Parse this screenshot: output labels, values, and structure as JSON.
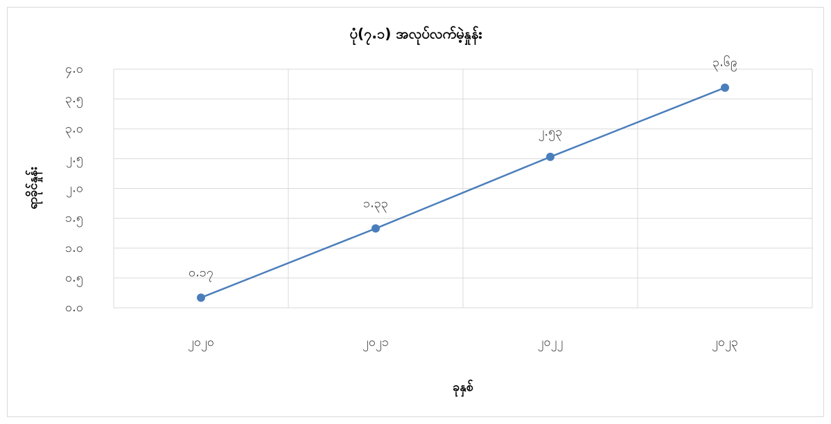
{
  "chart_data": {
    "type": "line",
    "title": "ပုံ(၇.၁) အလုပ်လက်မဲ့နှုန်း",
    "x_label": "ခုနှစ်",
    "y_label": "ရာခိုင်နှုန်း",
    "categories": [
      "၂၀၂၀",
      "၂၀၂၁",
      "၂၀၂၂",
      "၂၀၂၃"
    ],
    "values": [
      0.17,
      1.33,
      2.53,
      3.69
    ],
    "value_labels": [
      "၀.၁၇",
      "၁.၃၃",
      "၂.၅၃",
      "၃.၆၉"
    ],
    "color": "#4a7ebb",
    "ylim": [
      0,
      4
    ],
    "yticks": [
      {
        "value": 0,
        "label": "၀.၀"
      },
      {
        "value": 0.5,
        "label": "၀.၅"
      },
      {
        "value": 1,
        "label": "၁.၀"
      },
      {
        "value": 1.5,
        "label": "၁.၅"
      },
      {
        "value": 2,
        "label": "၂.၀"
      },
      {
        "value": 2.5,
        "label": "၂.၅"
      },
      {
        "value": 3,
        "label": "၃.၀"
      },
      {
        "value": 3.5,
        "label": "၃.၅"
      },
      {
        "value": 4,
        "label": "၄.၀"
      }
    ],
    "grid": true
  }
}
